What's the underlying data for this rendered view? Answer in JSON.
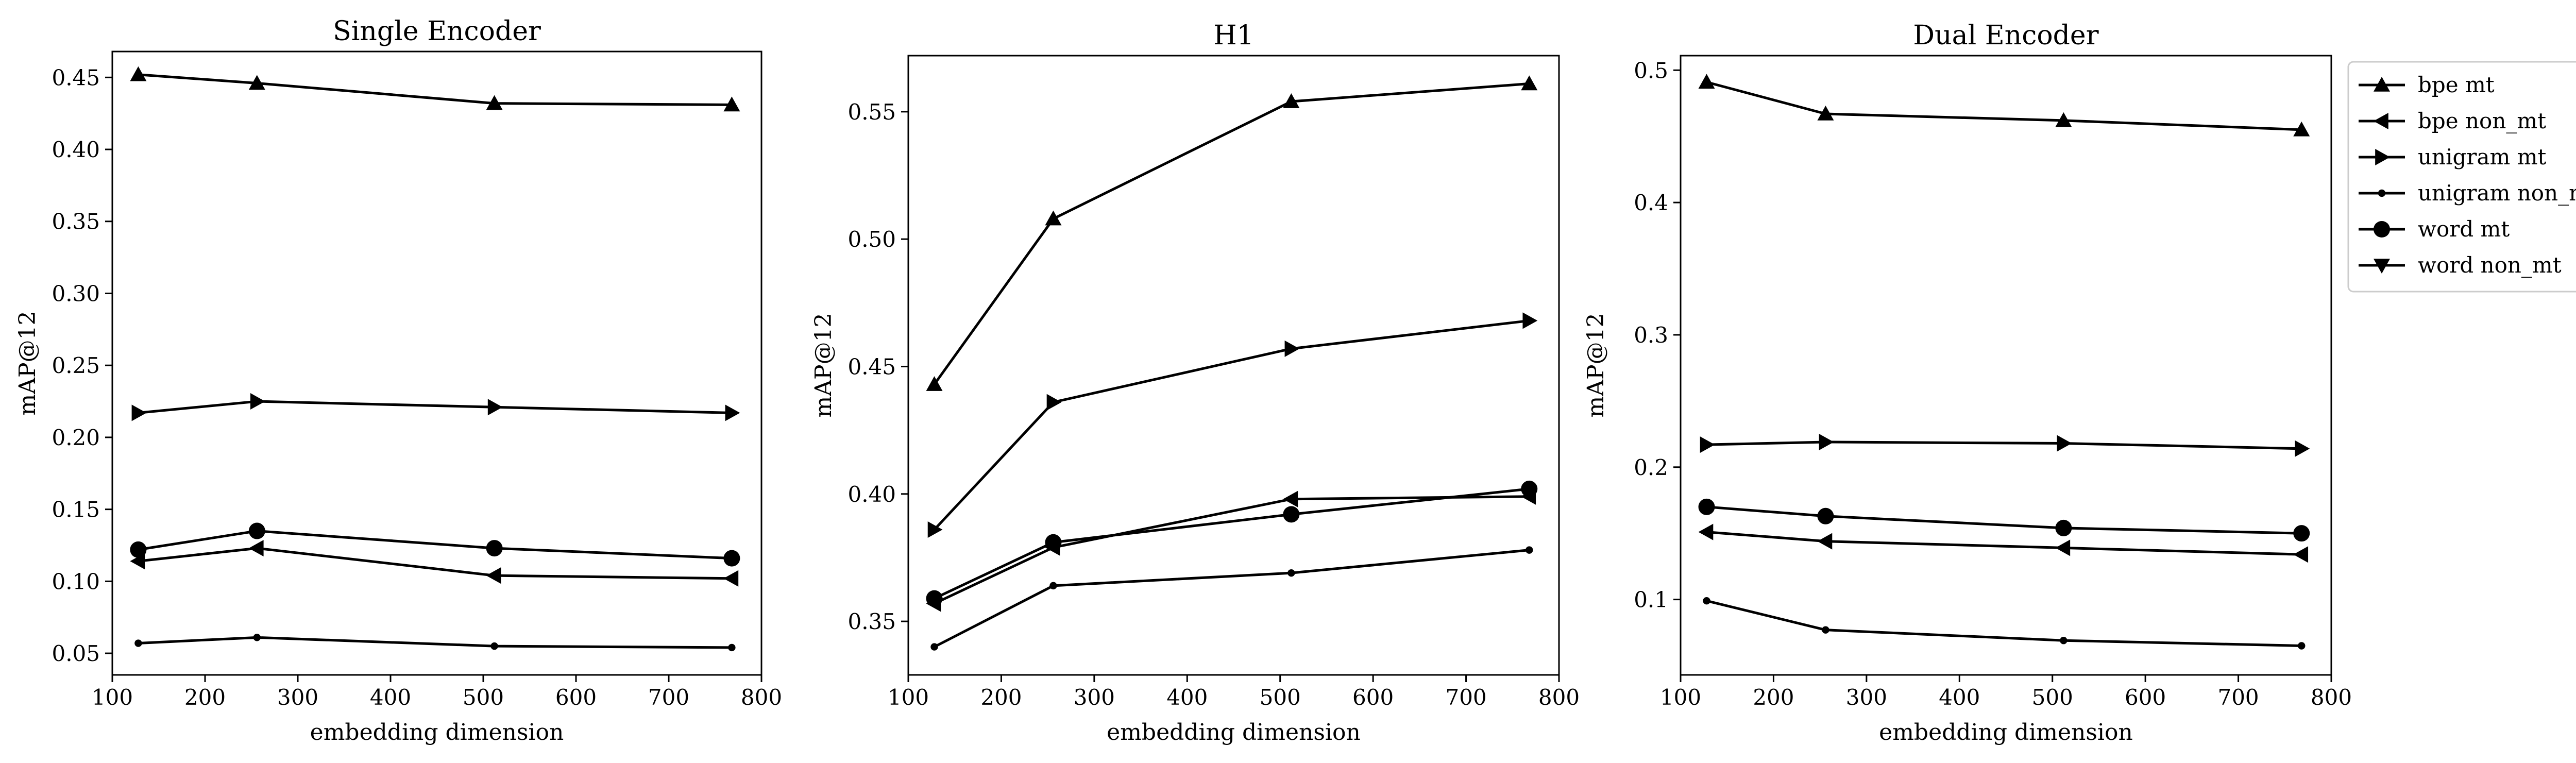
{
  "chart_data": [
    {
      "type": "line",
      "title": "Single Encoder",
      "xlabel": "embedding dimension",
      "ylabel": "mAP@12",
      "xlim": [
        100,
        800
      ],
      "ylim": [
        0.035,
        0.468
      ],
      "xticks": [
        "100",
        "200",
        "300",
        "400",
        "500",
        "600",
        "700",
        "800"
      ],
      "yticks": [
        "0.05",
        "0.10",
        "0.15",
        "0.20",
        "0.25",
        "0.30",
        "0.35",
        "0.40",
        "0.45"
      ],
      "x": [
        128,
        256,
        512,
        768
      ],
      "series": [
        {
          "name": "bpe mt",
          "marker": "triangle-up",
          "values": [
            0.452,
            0.446,
            0.432,
            0.431
          ]
        },
        {
          "name": "bpe non_mt",
          "marker": "triangle-left",
          "values": [
            0.114,
            0.123,
            0.104,
            0.102
          ]
        },
        {
          "name": "unigram mt",
          "marker": "triangle-right",
          "values": [
            0.217,
            0.225,
            0.221,
            0.217
          ]
        },
        {
          "name": "unigram non_mt",
          "marker": "dot",
          "values": [
            0.057,
            0.061,
            0.055,
            0.054
          ]
        },
        {
          "name": "word mt",
          "marker": "circle",
          "values": [
            0.122,
            0.135,
            0.123,
            0.116
          ]
        },
        {
          "name": "word non_mt",
          "marker": "triangle-down",
          "values": [
            null,
            null,
            null,
            null
          ]
        }
      ]
    },
    {
      "type": "line",
      "title": "H1",
      "xlabel": "embedding dimension",
      "ylabel": "mAP@12",
      "xlim": [
        100,
        800
      ],
      "ylim": [
        0.329,
        0.572
      ],
      "xticks": [
        "100",
        "200",
        "300",
        "400",
        "500",
        "600",
        "700",
        "800"
      ],
      "yticks": [
        "0.35",
        "0.40",
        "0.45",
        "0.50",
        "0.55"
      ],
      "x": [
        128,
        256,
        512,
        768
      ],
      "series": [
        {
          "name": "bpe mt",
          "marker": "triangle-up",
          "values": [
            0.443,
            0.508,
            0.554,
            0.561
          ]
        },
        {
          "name": "bpe non_mt",
          "marker": "triangle-left",
          "values": [
            0.357,
            0.379,
            0.398,
            0.399
          ]
        },
        {
          "name": "unigram mt",
          "marker": "triangle-right",
          "values": [
            0.386,
            0.436,
            0.457,
            0.468
          ]
        },
        {
          "name": "unigram non_mt",
          "marker": "dot",
          "values": [
            0.34,
            0.364,
            0.369,
            0.378
          ]
        },
        {
          "name": "word mt",
          "marker": "circle",
          "values": [
            0.359,
            0.381,
            0.392,
            0.402
          ]
        },
        {
          "name": "word non_mt",
          "marker": "triangle-down",
          "values": [
            null,
            null,
            null,
            null
          ]
        }
      ]
    },
    {
      "type": "line",
      "title": "Dual Encoder",
      "xlabel": "embedding dimension",
      "ylabel": "mAP@12",
      "xlim": [
        100,
        800
      ],
      "ylim": [
        0.043,
        0.511
      ],
      "xticks": [
        "100",
        "200",
        "300",
        "400",
        "500",
        "600",
        "700",
        "800"
      ],
      "yticks": [
        "0.1",
        "0.2",
        "0.3",
        "0.4",
        "0.5"
      ],
      "x": [
        128,
        256,
        512,
        768
      ],
      "series": [
        {
          "name": "bpe mt",
          "marker": "triangle-up",
          "values": [
            0.491,
            0.467,
            0.462,
            0.455
          ]
        },
        {
          "name": "bpe non_mt",
          "marker": "triangle-left",
          "values": [
            0.151,
            0.144,
            0.139,
            0.134
          ]
        },
        {
          "name": "unigram mt",
          "marker": "triangle-right",
          "values": [
            0.217,
            0.219,
            0.218,
            0.214
          ]
        },
        {
          "name": "unigram non_mt",
          "marker": "dot",
          "values": [
            0.099,
            0.077,
            0.069,
            0.065
          ]
        },
        {
          "name": "word mt",
          "marker": "circle",
          "values": [
            0.17,
            0.163,
            0.154,
            0.15
          ]
        },
        {
          "name": "word non_mt",
          "marker": "triangle-down",
          "values": [
            null,
            null,
            null,
            null
          ]
        }
      ]
    }
  ],
  "legend": {
    "placement": "right",
    "entries": [
      {
        "label": "bpe mt",
        "marker": "triangle-up"
      },
      {
        "label": "bpe non_mt",
        "marker": "triangle-left"
      },
      {
        "label": "unigram mt",
        "marker": "triangle-right"
      },
      {
        "label": "unigram non_mt",
        "marker": "dot"
      },
      {
        "label": "word mt",
        "marker": "circle"
      },
      {
        "label": "word non_mt",
        "marker": "triangle-down"
      }
    ]
  },
  "colors": {
    "line": "#000000",
    "background": "#ffffff"
  }
}
